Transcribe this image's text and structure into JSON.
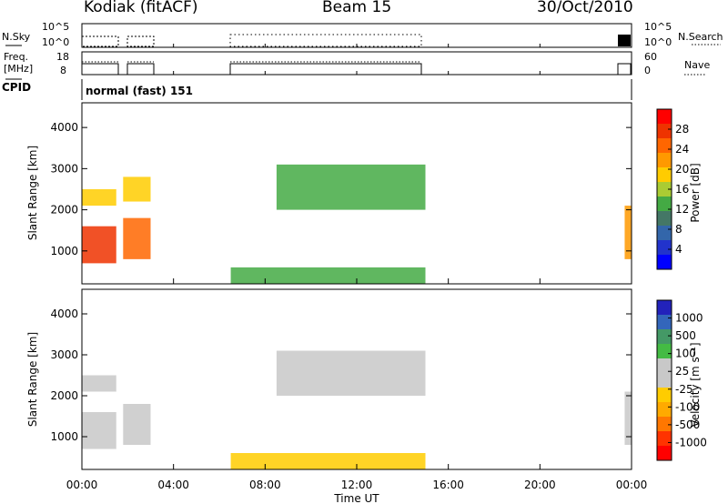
{
  "header": {
    "station": "Kodiak (fitACF)",
    "beam": "Beam 15",
    "date": "30/Oct/2010"
  },
  "panels": {
    "nsky_label": "N.Sky",
    "nsky_ticks": [
      "10^5",
      "10^0"
    ],
    "nsearch_label": "N.Search",
    "nsearch_ticks": [
      "10^5",
      "10^0"
    ],
    "freq_label": "Freq.",
    "freq_unit": "[MHz]",
    "freq_ticks": [
      "18",
      "8"
    ],
    "nave_label": "Nave",
    "nave_ticks": [
      "60",
      "0"
    ],
    "cpid_label": "CPID",
    "cpid_text": "normal (fast) 151"
  },
  "time_axis": {
    "label": "Time UT",
    "ticks": [
      "00:00",
      "04:00",
      "08:00",
      "12:00",
      "16:00",
      "20:00",
      "00:00"
    ]
  },
  "power_colorbar": {
    "label": "Power [dB]",
    "ticks": [
      "28",
      "24",
      "20",
      "16",
      "12",
      "8",
      "4"
    ],
    "colors": [
      "#ff0000",
      "#ee3300",
      "#ff6600",
      "#ff9900",
      "#ffcc00",
      "#aacc33",
      "#44aa44",
      "#447766",
      "#3366aa",
      "#2233cc",
      "#0000ff"
    ]
  },
  "velocity_colorbar": {
    "label": "Velocity [m s⁻¹]",
    "ticks": [
      "1000",
      "500",
      "100",
      "25",
      "-25",
      "-100",
      "-500",
      "-1000"
    ],
    "colors": [
      "#2222bb",
      "#3366bb",
      "#449966",
      "#44bb44",
      "#c8c8c8",
      "#c8c8c8",
      "#ffcc00",
      "#ffaa00",
      "#ff7700",
      "#ff3300",
      "#ff0000"
    ]
  },
  "chart_data": [
    {
      "type": "heatmap",
      "title": "Power",
      "xlabel": "Time UT",
      "ylabel": "Slant Range [km]",
      "xlim": [
        0,
        24
      ],
      "ylim": [
        200,
        4600
      ],
      "yticks": [
        1000,
        2000,
        3000,
        4000
      ],
      "zlabel": "Power [dB]",
      "zlim": [
        0,
        32
      ],
      "regions": [
        {
          "t0": 0.0,
          "t1": 1.5,
          "r0": 700,
          "r1": 1600,
          "power": 28
        },
        {
          "t0": 0.0,
          "t1": 1.5,
          "r0": 2100,
          "r1": 2500,
          "power": 20
        },
        {
          "t0": 1.8,
          "t1": 3.0,
          "r0": 800,
          "r1": 1800,
          "power": 26
        },
        {
          "t0": 1.8,
          "t1": 3.0,
          "r0": 2200,
          "r1": 2800,
          "power": 20
        },
        {
          "t0": 6.5,
          "t1": 15.0,
          "r0": 200,
          "r1": 600,
          "power": 12
        },
        {
          "t0": 8.5,
          "t1": 15.0,
          "r0": 2000,
          "r1": 3100,
          "power": 12
        },
        {
          "t0": 23.7,
          "t1": 24.0,
          "r0": 800,
          "r1": 2100,
          "power": 24
        }
      ]
    },
    {
      "type": "heatmap",
      "title": "Velocity",
      "xlabel": "Time UT",
      "ylabel": "Slant Range [km]",
      "xlim": [
        0,
        24
      ],
      "ylim": [
        200,
        4600
      ],
      "yticks": [
        1000,
        2000,
        3000,
        4000
      ],
      "zlabel": "Velocity [m s⁻¹]",
      "zlim": [
        -1000,
        1000
      ],
      "regions": [
        {
          "t0": 0.0,
          "t1": 1.5,
          "r0": 700,
          "r1": 1600,
          "velocity": 0
        },
        {
          "t0": 0.0,
          "t1": 1.5,
          "r0": 2100,
          "r1": 2500,
          "velocity": 0
        },
        {
          "t0": 1.8,
          "t1": 3.0,
          "r0": 800,
          "r1": 1800,
          "velocity": 0
        },
        {
          "t0": 6.5,
          "t1": 15.0,
          "r0": 200,
          "r1": 600,
          "velocity": -100
        },
        {
          "t0": 8.5,
          "t1": 15.0,
          "r0": 2000,
          "r1": 3100,
          "velocity": 0
        },
        {
          "t0": 23.7,
          "t1": 24.0,
          "r0": 800,
          "r1": 2100,
          "velocity": 0
        }
      ]
    }
  ]
}
